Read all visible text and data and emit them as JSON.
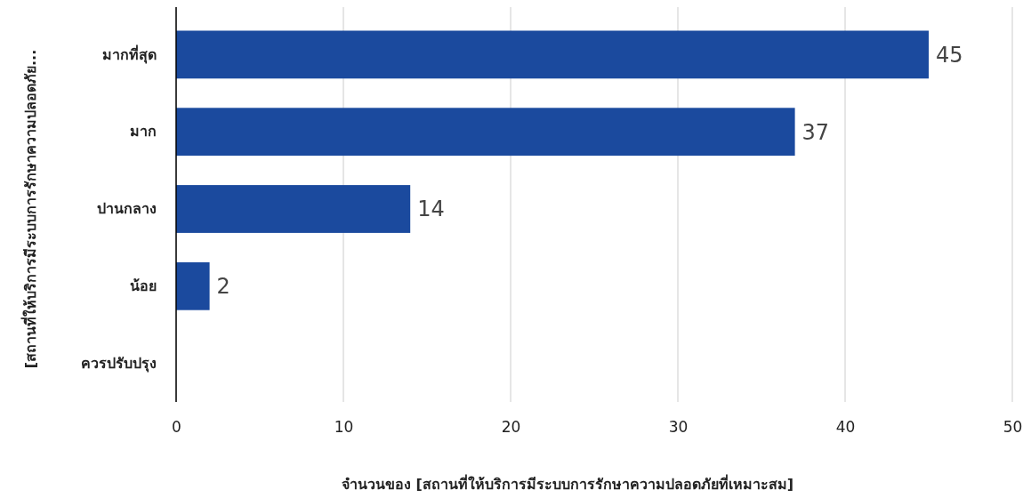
{
  "chart_data": {
    "type": "bar",
    "orientation": "horizontal",
    "xlabel": "จำนวนของ  [สถานที่ให้บริการมีระบบการรักษาความปลอดภัยที่เหมาะสม]",
    "ylabel": "[สถานที่ให้บริการมีระบบการรักษาความปลอดภัย...",
    "categories": [
      "มากที่สุด",
      "มาก",
      "ปานกลาง",
      "น้อย",
      "ควรปรับปรุง"
    ],
    "values": [
      45,
      37,
      14,
      2,
      null
    ],
    "color": "#1b4a9e",
    "data_labels": true,
    "xlim": [
      0,
      50
    ],
    "xticks": [
      0,
      10,
      20,
      30,
      40,
      50
    ],
    "grid": "x"
  }
}
